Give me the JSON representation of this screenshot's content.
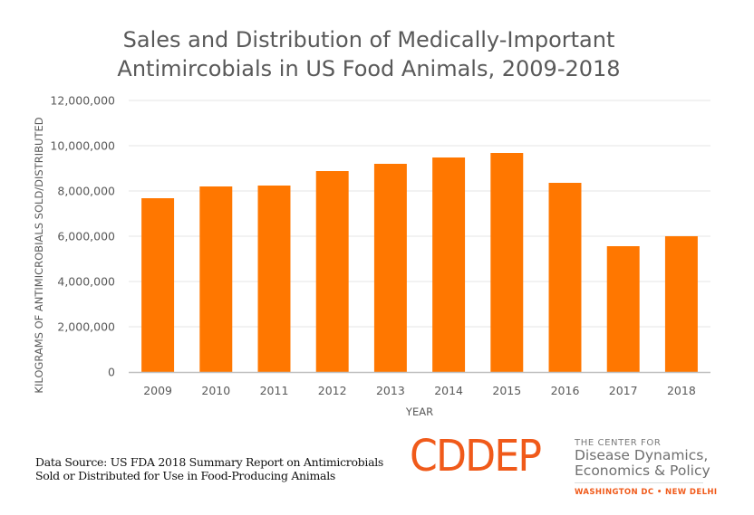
{
  "chart_data": {
    "type": "bar",
    "title": [
      "Sales and Distribution of Medically-Important",
      "Antimircobials in US Food Animals, 2009-2018"
    ],
    "xlabel": "YEAR",
    "ylabel": "KILOGRAMS OF ANTIMICROBIALS SOLD/DISTRIBUTED",
    "categories": [
      "2009",
      "2010",
      "2011",
      "2012",
      "2013",
      "2014",
      "2015",
      "2016",
      "2017",
      "2018"
    ],
    "series": [
      {
        "name": "Kilograms sold/distributed",
        "values": [
          7680000,
          8200000,
          8240000,
          8880000,
          9200000,
          9480000,
          9680000,
          8360000,
          5560000,
          6000000
        ],
        "color": "#ff7700"
      }
    ],
    "ylim": [
      0,
      12000000
    ],
    "yticks": [
      0,
      2000000,
      4000000,
      6000000,
      8000000,
      10000000,
      12000000
    ],
    "ytick_labels": [
      "0",
      "2,000,000",
      "4,000,000",
      "6,000,000",
      "8,000,000",
      "10,000,000",
      "12,000,000"
    ],
    "grid": true,
    "legend": "none"
  },
  "footer": {
    "source_line1": "Data Source: US FDA 2018 Summary Report on Antimicrobials",
    "source_line2": "Sold or Distributed for Use in Food-Producing Animals"
  },
  "logo": {
    "mark": "CDDEP",
    "kicker": "THE CENTER FOR",
    "name_line1": "Disease Dynamics,",
    "name_line2": "Economics & Policy",
    "cities": "WASHINGTON DC • NEW DELHI",
    "color": "#f05a1a"
  }
}
